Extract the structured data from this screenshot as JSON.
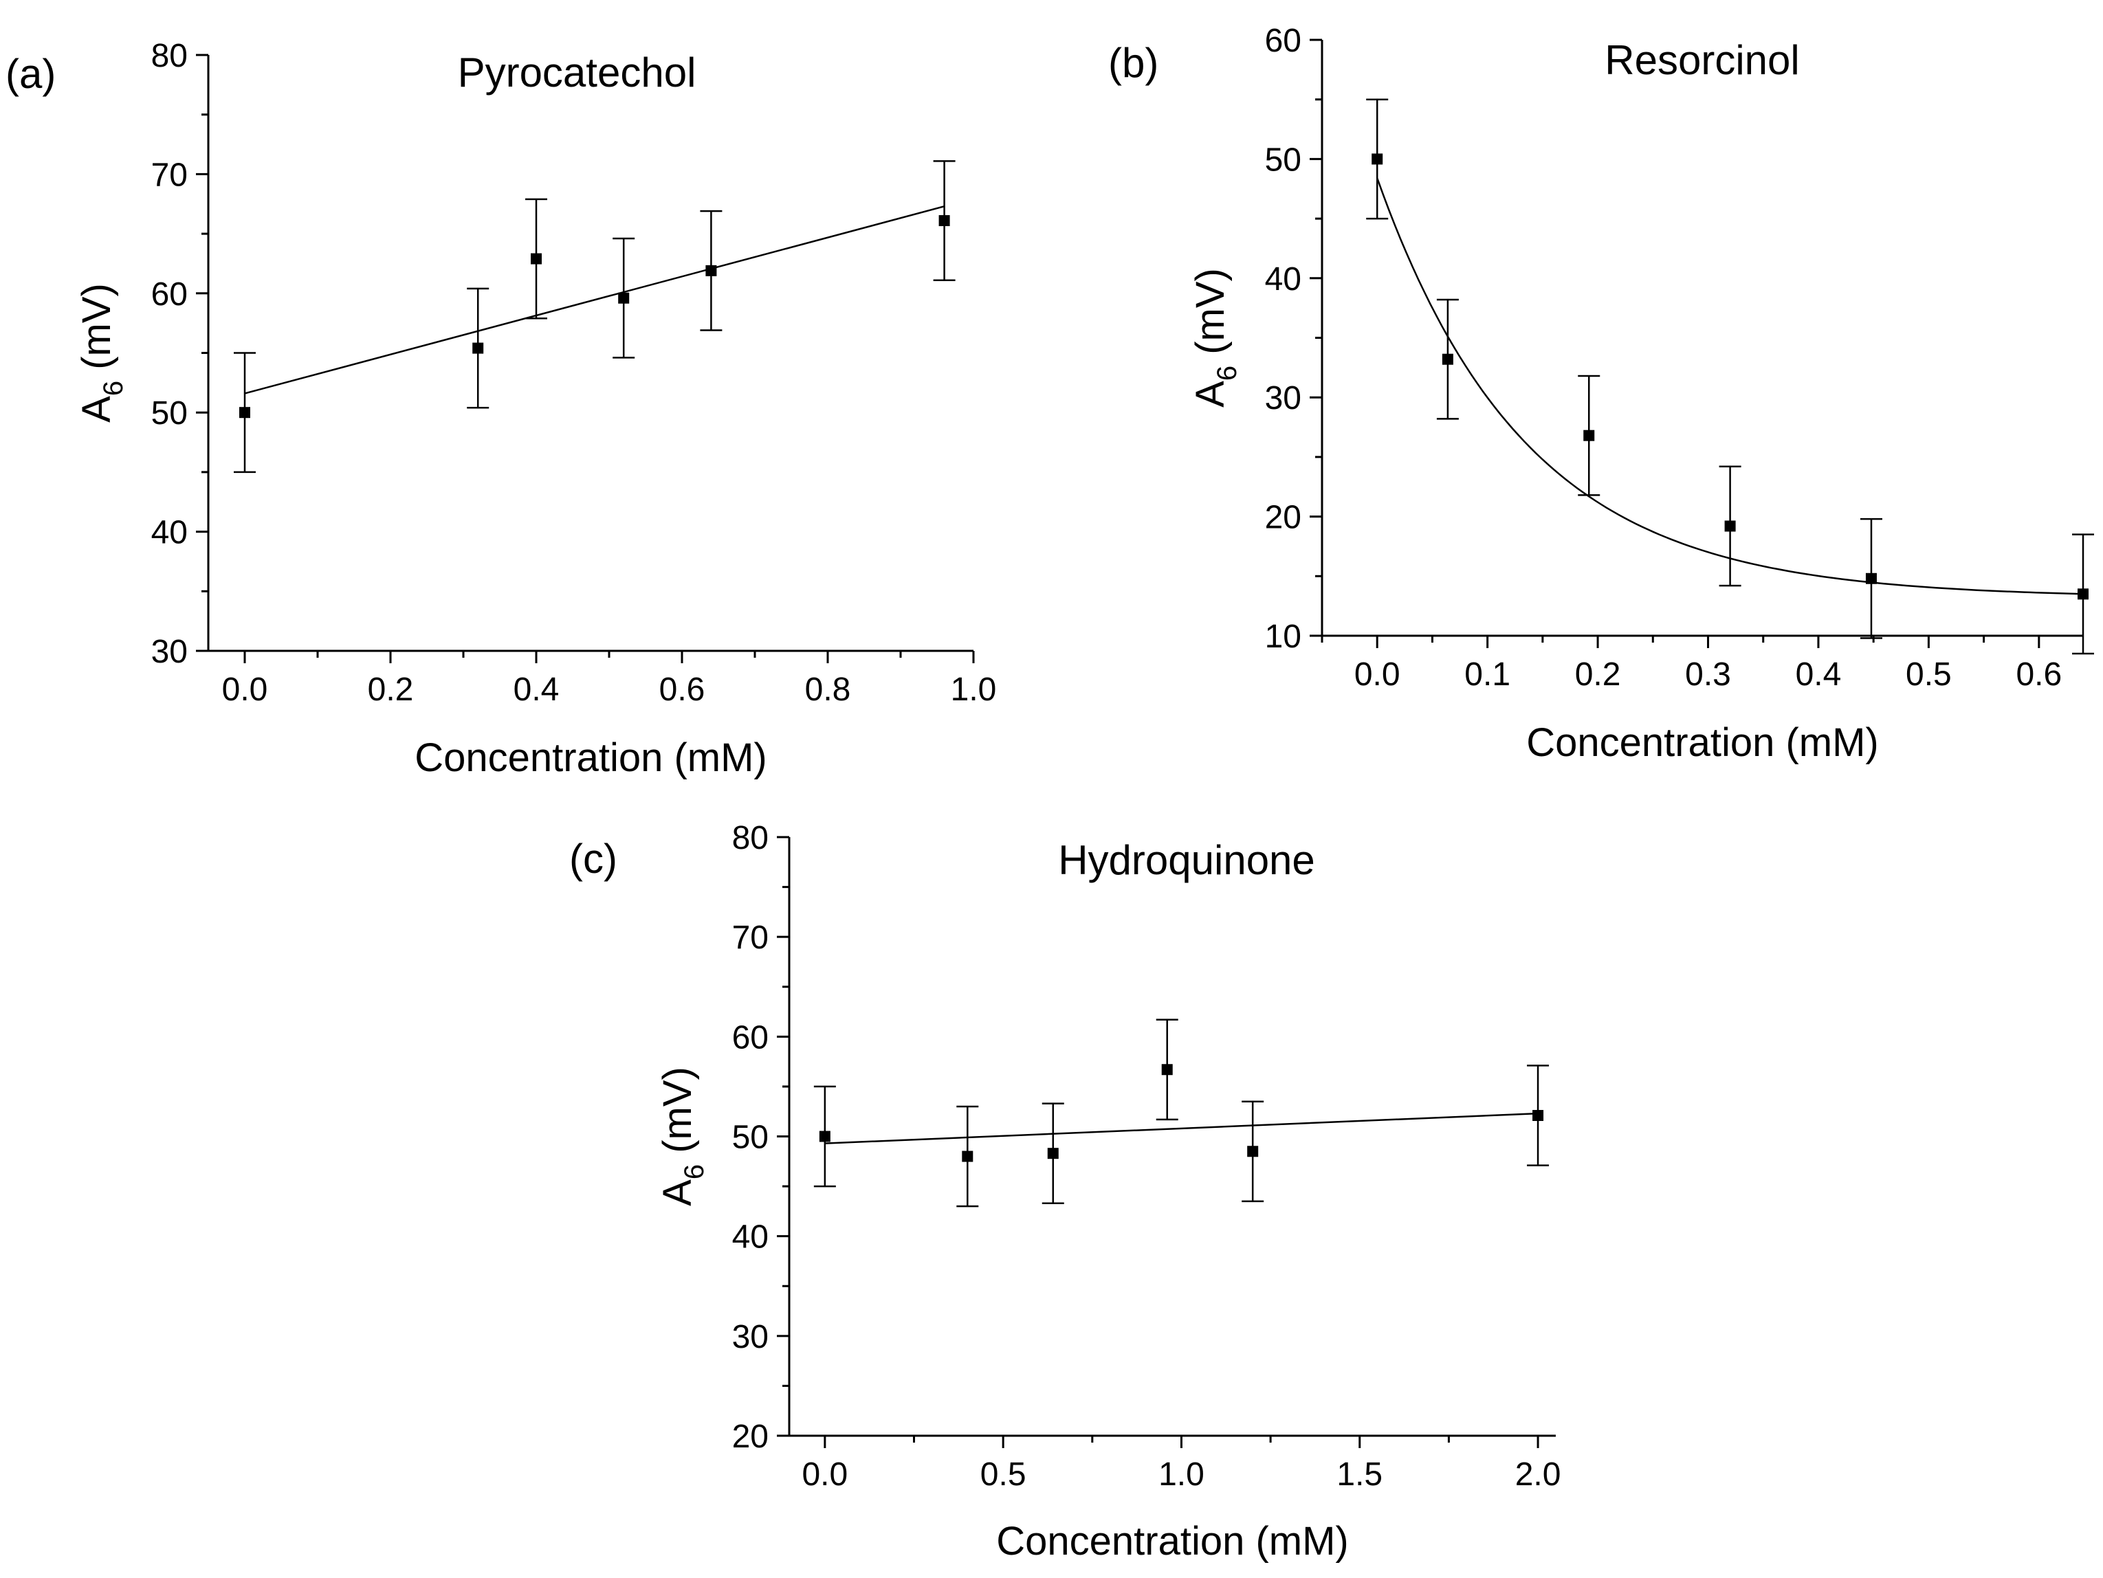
{
  "chart_data": [
    {
      "panel_label": "(a)",
      "type": "scatter",
      "title": "Pyrocatechol",
      "xlabel": "Concentration (mM)",
      "ylabel_main": "A",
      "ylabel_sub": "6",
      "ylabel_unit": " (mV)",
      "xlim": [
        -0.05,
        1.0
      ],
      "ylim": [
        30,
        80
      ],
      "xticks": [
        0.0,
        0.2,
        0.4,
        0.6,
        0.8,
        1.0
      ],
      "xtick_labels": [
        "0.0",
        "0.2",
        "0.4",
        "0.6",
        "0.8",
        "1.0"
      ],
      "yticks": [
        30,
        40,
        50,
        60,
        70,
        80
      ],
      "ytick_labels": [
        "30",
        "40",
        "50",
        "60",
        "70",
        "80"
      ],
      "x": [
        0.0,
        0.32,
        0.4,
        0.52,
        0.64,
        0.96
      ],
      "y": [
        50.0,
        55.4,
        62.9,
        59.6,
        61.9,
        66.1
      ],
      "error": [
        5,
        5,
        5,
        5,
        5,
        5
      ],
      "fit": {
        "type": "linear",
        "x": [
          0.0,
          0.96
        ],
        "y": [
          51.6,
          67.3
        ]
      }
    },
    {
      "panel_label": "(b)",
      "type": "scatter",
      "title": "Resorcinol",
      "xlabel": "Concentration (mM)",
      "ylabel_main": "A",
      "ylabel_sub": "6",
      "ylabel_unit": " (mV)",
      "xlim": [
        -0.05,
        0.64
      ],
      "ylim": [
        10,
        60
      ],
      "xticks": [
        0.0,
        0.1,
        0.2,
        0.3,
        0.4,
        0.5,
        0.6
      ],
      "xtick_labels": [
        "0.0",
        "0.1",
        "0.2",
        "0.3",
        "0.4",
        "0.5",
        "0.6"
      ],
      "yticks": [
        10,
        20,
        30,
        40,
        50,
        60
      ],
      "ytick_labels": [
        "10",
        "20",
        "30",
        "40",
        "50",
        "60"
      ],
      "x": [
        0.0,
        0.064,
        0.192,
        0.32,
        0.448,
        0.64
      ],
      "y": [
        50.0,
        33.2,
        26.8,
        19.2,
        14.8,
        13.5
      ],
      "error": [
        5,
        5,
        5,
        5,
        5,
        5
      ],
      "fit": {
        "type": "exponential",
        "y0": 13.2,
        "A": 35.2,
        "t": 0.135,
        "x_start": 0.0,
        "x_end": 0.64
      }
    },
    {
      "panel_label": "(c)",
      "type": "scatter",
      "title": "Hydroquinone",
      "xlabel": "Concentration (mM)",
      "ylabel_main": "A",
      "ylabel_sub": "6",
      "ylabel_unit": " (mV)",
      "xlim": [
        -0.1,
        2.05
      ],
      "ylim": [
        20,
        80
      ],
      "xticks": [
        0.0,
        0.5,
        1.0,
        1.5,
        2.0
      ],
      "xtick_labels": [
        "0.0",
        "0.5",
        "1.0",
        "1.5",
        "2.0"
      ],
      "yticks": [
        20,
        30,
        40,
        50,
        60,
        70,
        80
      ],
      "ytick_labels": [
        "20",
        "30",
        "40",
        "50",
        "60",
        "70",
        "80"
      ],
      "x": [
        0.0,
        0.4,
        0.64,
        0.96,
        1.2,
        2.0
      ],
      "y": [
        50.0,
        48.0,
        48.3,
        56.7,
        48.5,
        52.1
      ],
      "error": [
        5,
        5,
        5,
        5,
        5,
        5
      ],
      "fit": {
        "type": "linear",
        "x": [
          0.0,
          2.0
        ],
        "y": [
          49.3,
          52.3
        ]
      }
    }
  ]
}
